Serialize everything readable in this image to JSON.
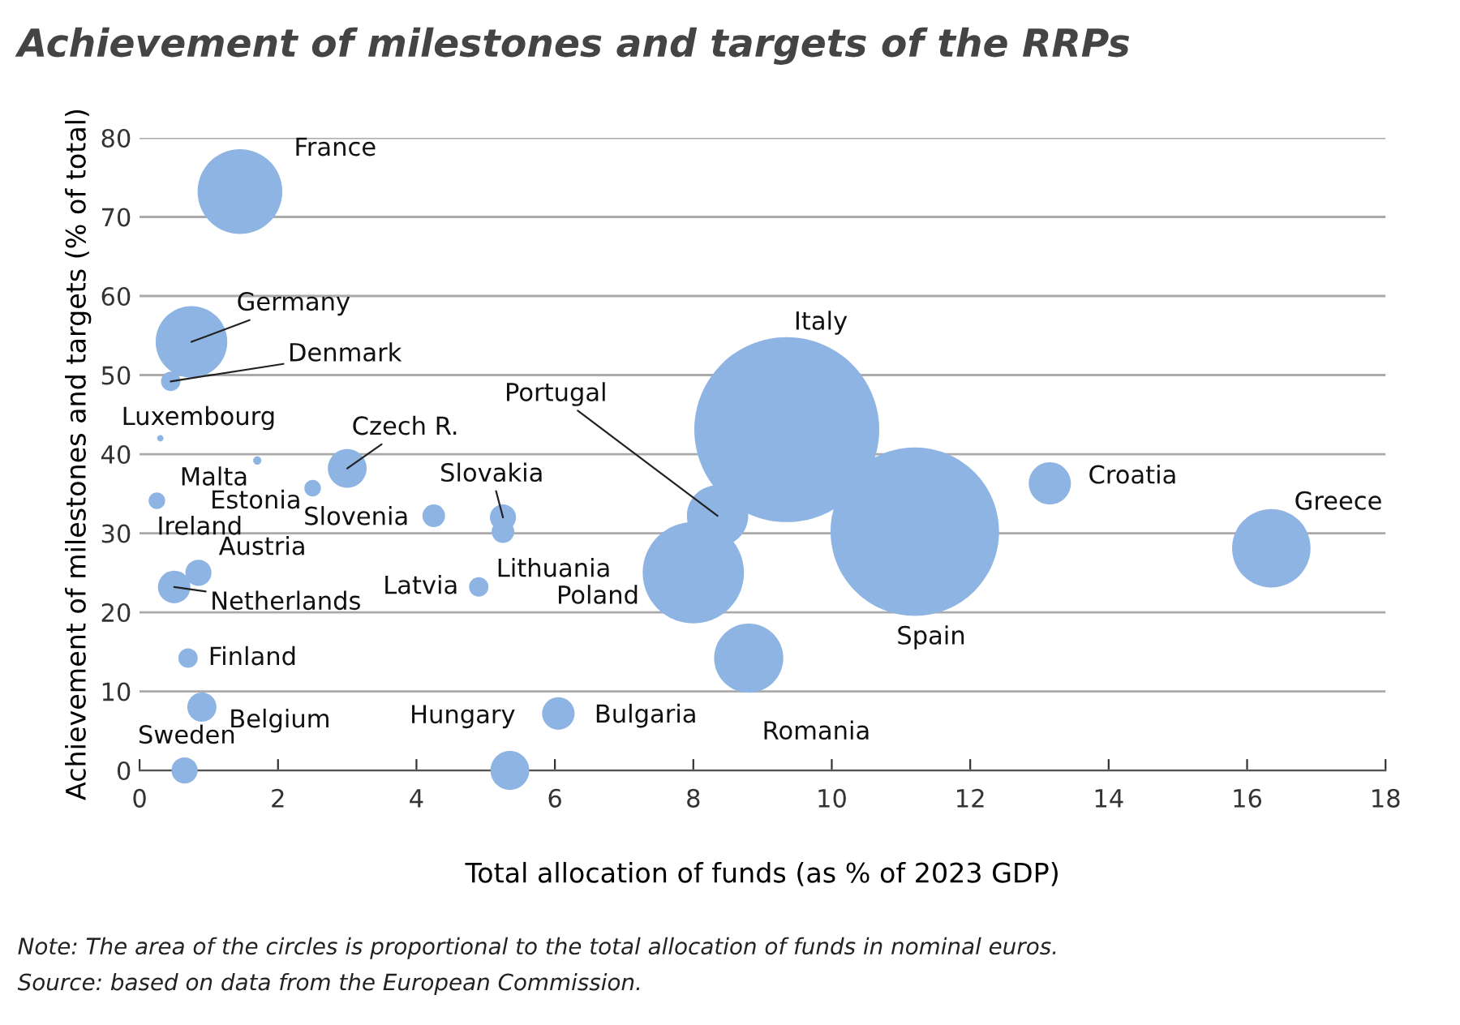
{
  "chart_data": {
    "type": "bubble",
    "title": "Achievement of milestones and targets of the RRPs",
    "xlabel": "Total allocation of funds (as % of 2023 GDP)",
    "ylabel": "Achievement of milestones and targets (% of total)",
    "xlim": [
      0,
      18
    ],
    "xticks": [
      0,
      2,
      4,
      6,
      8,
      10,
      12,
      14,
      16,
      18
    ],
    "ylim": [
      0,
      80
    ],
    "yticks": [
      0,
      10,
      20,
      30,
      40,
      50,
      60,
      70,
      80
    ],
    "grid": "y",
    "legend": false,
    "series": [
      {
        "color": "#8eb4e3",
        "x": [
          1.45,
          0.75,
          0.45,
          0.3,
          1.7,
          3.0,
          2.5,
          0.25,
          4.25,
          5.25,
          5.25,
          0.85,
          0.5,
          4.9,
          0.7,
          0.9,
          0.65,
          5.35,
          6.05,
          8.35,
          8.0,
          8.8,
          9.35,
          11.2,
          13.15,
          16.35
        ],
        "values": [
          73.2,
          54.2,
          49.2,
          42.0,
          39.2,
          38.2,
          35.7,
          34.1,
          32.2,
          32.0,
          30.2,
          25.0,
          23.2,
          23.2,
          14.2,
          8.0,
          0,
          0,
          7.2,
          32.2,
          25.0,
          14.2,
          43.1,
          30.2,
          36.3,
          28.1
        ],
        "sizes": [
          0.21,
          0.15,
          0.011,
          0.0012,
          0.002,
          0.044,
          0.008,
          0.008,
          0.015,
          0.02,
          0.015,
          0.02,
          0.031,
          0.011,
          0.011,
          0.025,
          0.02,
          0.044,
          0.031,
          0.11,
          0.3,
          0.14,
          1,
          0.83,
          0.052,
          0.18
        ]
      }
    ],
    "annotations": [
      {
        "text": "France",
        "x": 1.45,
        "y": 73.2
      },
      {
        "text": "Germany",
        "x": 0.75,
        "y": 54.2
      },
      {
        "text": "Denmark",
        "x": 0.45,
        "y": 49.2
      },
      {
        "text": "Luxembourg",
        "x": 0.3,
        "y": 42.0
      },
      {
        "text": "Malta",
        "x": 1.7,
        "y": 39.2
      },
      {
        "text": "Czech R.",
        "x": 3.0,
        "y": 38.2
      },
      {
        "text": "Estonia",
        "x": 2.5,
        "y": 35.7
      },
      {
        "text": "Ireland",
        "x": 0.25,
        "y": 34.1
      },
      {
        "text": "Slovenia",
        "x": 4.25,
        "y": 32.2
      },
      {
        "text": "Slovakia",
        "x": 5.25,
        "y": 32.0
      },
      {
        "text": "Lithuania",
        "x": 5.25,
        "y": 30.2
      },
      {
        "text": "Austria",
        "x": 0.85,
        "y": 25.0
      },
      {
        "text": "Netherlands",
        "x": 0.5,
        "y": 23.2
      },
      {
        "text": "Latvia",
        "x": 4.9,
        "y": 23.2
      },
      {
        "text": "Finland",
        "x": 0.7,
        "y": 14.2
      },
      {
        "text": "Belgium",
        "x": 0.9,
        "y": 8.0
      },
      {
        "text": "Sweden",
        "x": 0.65,
        "y": 0
      },
      {
        "text": "Hungary",
        "x": 5.35,
        "y": 0
      },
      {
        "text": "Bulgaria",
        "x": 6.05,
        "y": 7.2
      },
      {
        "text": "Portugal",
        "x": 8.35,
        "y": 32.2
      },
      {
        "text": "Romania",
        "x": 8.8,
        "y": 14.2
      },
      {
        "text": "Croatia",
        "x": 13.15,
        "y": 36.3
      },
      "Poland",
      "Italy",
      "Spain",
      "Greece",
      "Note: The area of the circles is proportional to the total allocation of funds in nominal euros.",
      "Source: based on data from the European Commission."
    ]
  }
}
